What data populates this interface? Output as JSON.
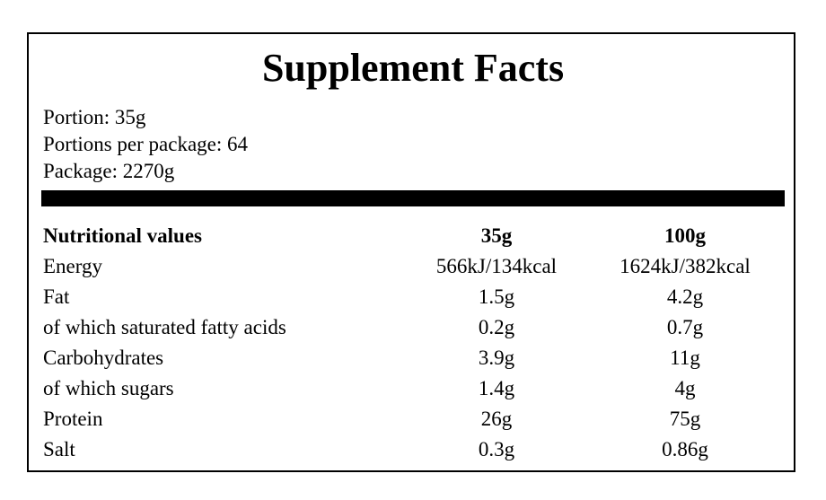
{
  "title": "Supplement Facts",
  "meta": {
    "portion": "Portion: 35g",
    "portions_per_package": "Portions per package: 64",
    "package": "Package: 2270g"
  },
  "table": {
    "header": {
      "name": "Nutritional values",
      "col_a": "35g",
      "col_b": "100g"
    },
    "rows": [
      {
        "name": "Energy",
        "col_a": "566kJ/134kcal",
        "col_b": "1624kJ/382kcal"
      },
      {
        "name": "Fat",
        "col_a": "1.5g",
        "col_b": "4.2g"
      },
      {
        "name": "of which saturated fatty acids",
        "col_a": "0.2g",
        "col_b": "0.7g"
      },
      {
        "name": "Carbohydrates",
        "col_a": "3.9g",
        "col_b": "11g"
      },
      {
        "name": "of which sugars",
        "col_a": "1.4g",
        "col_b": "4g"
      },
      {
        "name": "Protein",
        "col_a": "26g",
        "col_b": "75g"
      },
      {
        "name": "Salt",
        "col_a": "0.3g",
        "col_b": "0.86g"
      }
    ]
  }
}
